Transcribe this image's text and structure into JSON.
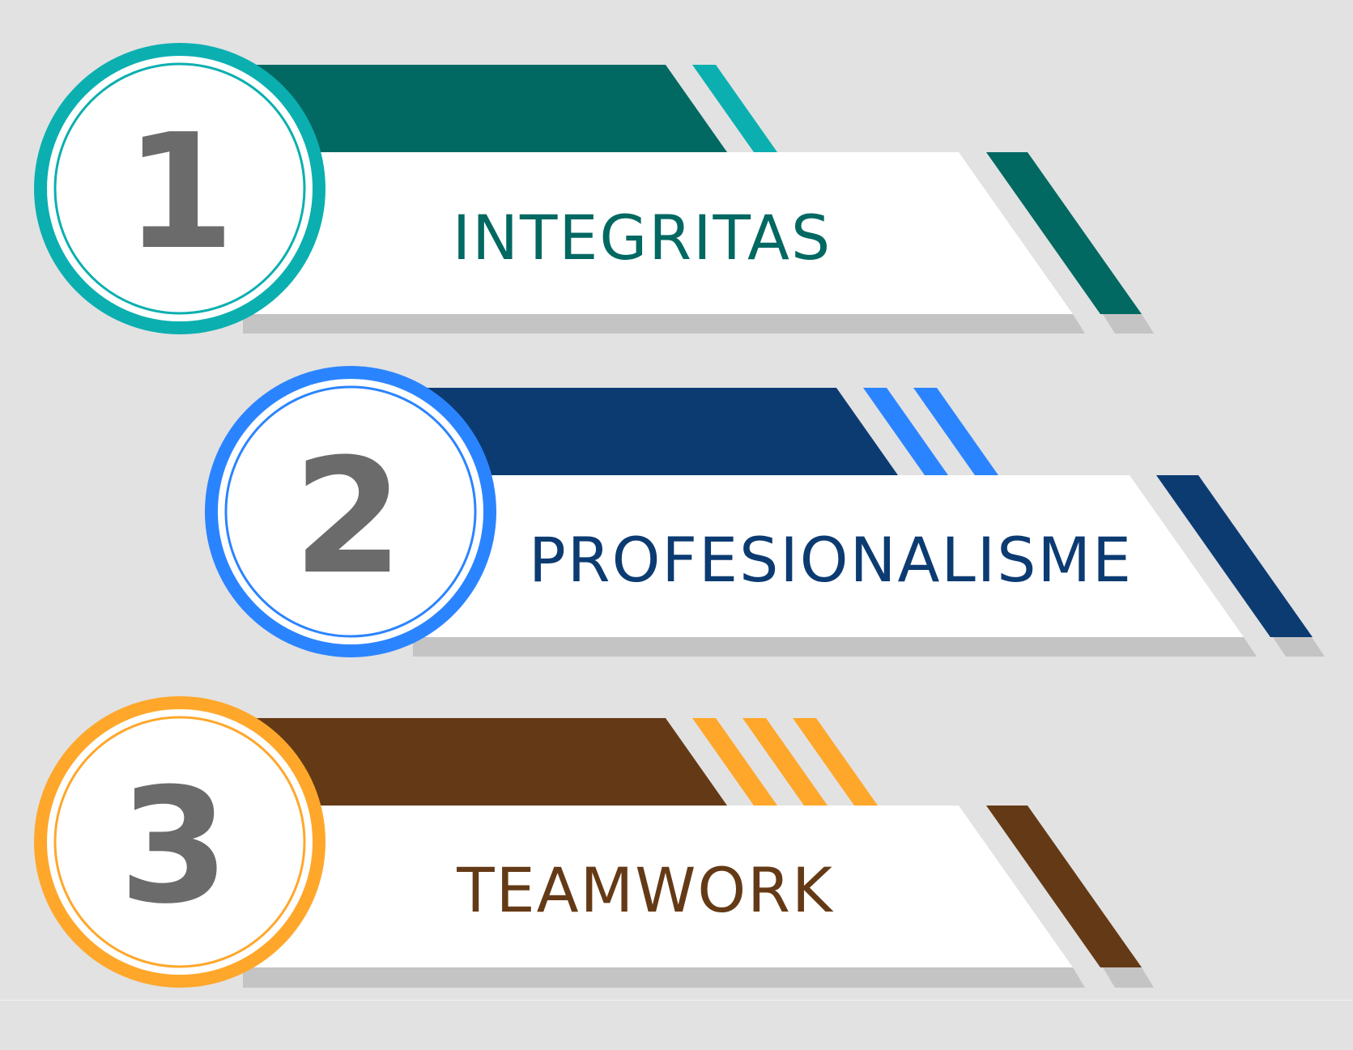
{
  "items": [
    {
      "number": "1",
      "label": "INTEGRITAS",
      "colors": {
        "dark": "#026862",
        "accent": "#0bafb0",
        "label": "#026862"
      },
      "stripe_count": 1
    },
    {
      "number": "2",
      "label": "PROFESIONALISME",
      "colors": {
        "dark": "#0c3b72",
        "accent": "#2b84ff",
        "label": "#0c3b72"
      },
      "stripe_count": 2
    },
    {
      "number": "3",
      "label": "TEAMWORK",
      "colors": {
        "dark": "#643a16",
        "accent": "#ffa72b",
        "label": "#643a16"
      },
      "stripe_count": 3
    }
  ],
  "colors": {
    "background": "#e2e2e2",
    "banner": "#ffffff",
    "shadow": "#c4c4c4",
    "number": "#6b6b6b"
  }
}
